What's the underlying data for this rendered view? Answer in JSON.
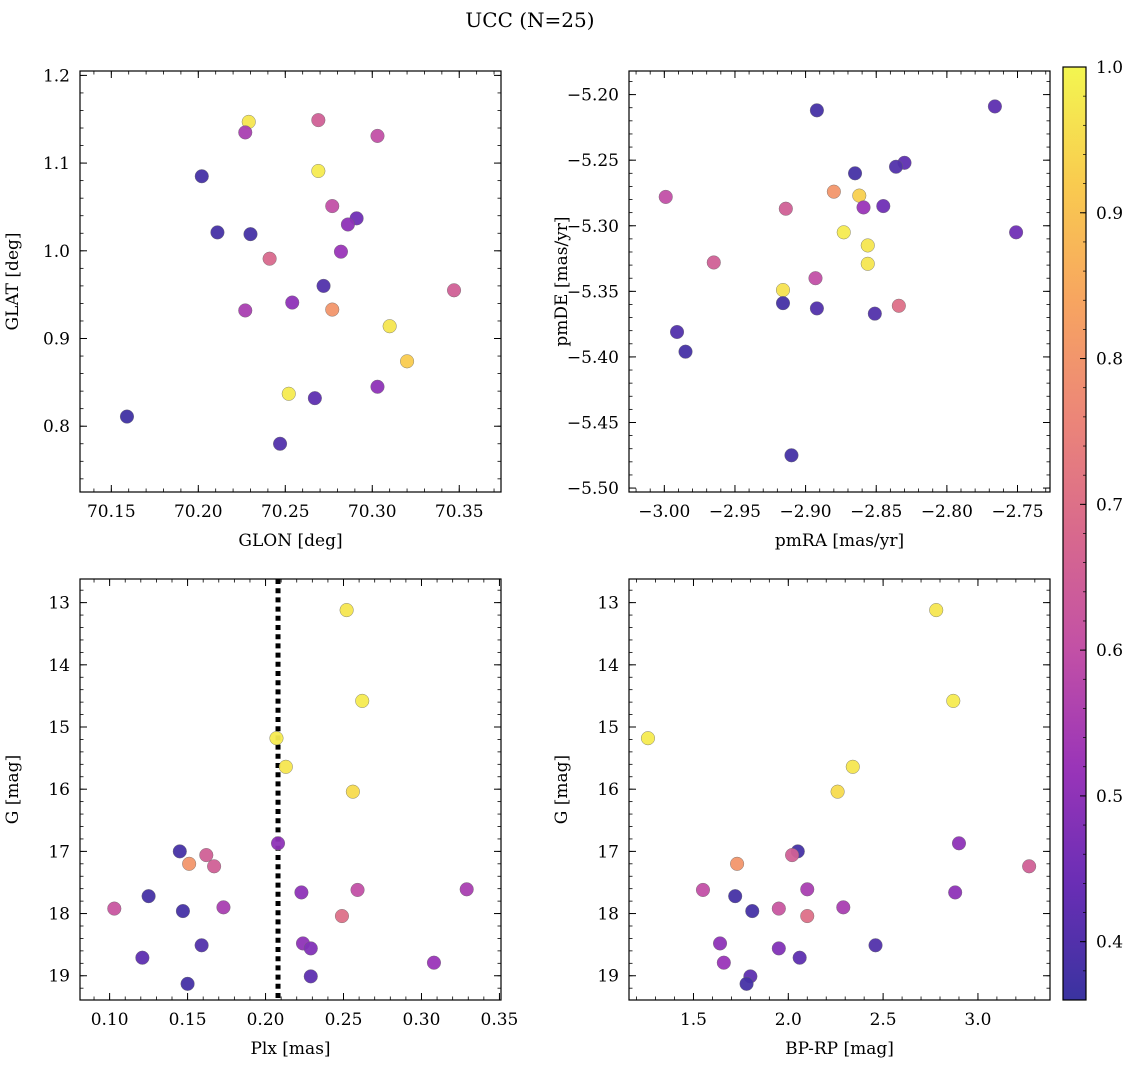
{
  "figure": {
    "suptitle": "UCC (N=25)"
  },
  "colorbar": {
    "range": [
      0.36,
      1.0
    ],
    "ticks": [
      0.4,
      0.5,
      0.6,
      0.7,
      0.8,
      0.9,
      1.0
    ],
    "colormap": "plasma",
    "stops": [
      "#3a33a0",
      "#6a2eb5",
      "#9a35b8",
      "#c250a6",
      "#d8698d",
      "#ec8678",
      "#f7a560",
      "#f9cb4f",
      "#f3f650"
    ]
  },
  "chart_data": [
    {
      "id": "glon_glat",
      "type": "scatter",
      "title": "",
      "xlabel": "GLON [deg]",
      "ylabel": "GLAT [deg]",
      "xlim": [
        70.132,
        70.374
      ],
      "ylim": [
        0.725,
        1.205
      ],
      "y_inverted": false,
      "xticks": [
        70.15,
        70.2,
        70.25,
        70.3,
        70.35
      ],
      "xtick_labels": [
        "70.15",
        "70.20",
        "70.25",
        "70.30",
        "70.35"
      ],
      "yticks": [
        0.8,
        0.9,
        1.0,
        1.1,
        1.2
      ],
      "ytick_labels": [
        "0.8",
        "0.9",
        "1.0",
        "1.1",
        "1.2"
      ],
      "vline": null,
      "points": [
        {
          "x": 70.229,
          "y": 1.147,
          "c": 0.97
        },
        {
          "x": 70.227,
          "y": 1.135,
          "c": 0.55
        },
        {
          "x": 70.269,
          "y": 1.149,
          "c": 0.65
        },
        {
          "x": 70.303,
          "y": 1.131,
          "c": 0.6
        },
        {
          "x": 70.269,
          "y": 1.091,
          "c": 0.98
        },
        {
          "x": 70.202,
          "y": 1.085,
          "c": 0.38
        },
        {
          "x": 70.277,
          "y": 1.051,
          "c": 0.6
        },
        {
          "x": 70.291,
          "y": 1.037,
          "c": 0.45
        },
        {
          "x": 70.286,
          "y": 1.03,
          "c": 0.5
        },
        {
          "x": 70.211,
          "y": 1.021,
          "c": 0.38
        },
        {
          "x": 70.23,
          "y": 1.019,
          "c": 0.38
        },
        {
          "x": 70.282,
          "y": 0.999,
          "c": 0.52
        },
        {
          "x": 70.241,
          "y": 0.991,
          "c": 0.68
        },
        {
          "x": 70.272,
          "y": 0.96,
          "c": 0.4
        },
        {
          "x": 70.347,
          "y": 0.955,
          "c": 0.65
        },
        {
          "x": 70.254,
          "y": 0.941,
          "c": 0.5
        },
        {
          "x": 70.227,
          "y": 0.932,
          "c": 0.55
        },
        {
          "x": 70.277,
          "y": 0.933,
          "c": 0.8
        },
        {
          "x": 70.31,
          "y": 0.914,
          "c": 0.97
        },
        {
          "x": 70.32,
          "y": 0.874,
          "c": 0.92
        },
        {
          "x": 70.303,
          "y": 0.845,
          "c": 0.5
        },
        {
          "x": 70.252,
          "y": 0.837,
          "c": 0.98
        },
        {
          "x": 70.267,
          "y": 0.832,
          "c": 0.42
        },
        {
          "x": 70.159,
          "y": 0.811,
          "c": 0.37
        },
        {
          "x": 70.247,
          "y": 0.78,
          "c": 0.4
        }
      ]
    },
    {
      "id": "pmra_pmde",
      "type": "scatter",
      "title": "",
      "xlabel": "pmRA [mas/yr]",
      "ylabel": "pmDE [mas/yr]",
      "xlim": [
        -3.025,
        -2.727
      ],
      "ylim": [
        -5.503,
        -5.182
      ],
      "y_inverted": false,
      "xticks": [
        -3.0,
        -2.95,
        -2.9,
        -2.85,
        -2.8,
        -2.75
      ],
      "xtick_labels": [
        "−3.00",
        "−2.95",
        "−2.90",
        "−2.85",
        "−2.80",
        "−2.75"
      ],
      "yticks": [
        -5.5,
        -5.45,
        -5.4,
        -5.35,
        -5.3,
        -5.25,
        -5.2
      ],
      "ytick_labels": [
        "−5.50",
        "−5.45",
        "−5.40",
        "−5.35",
        "−5.30",
        "−5.25",
        "−5.20"
      ],
      "vline": null,
      "points": [
        {
          "x": -2.766,
          "y": -5.209,
          "c": 0.42
        },
        {
          "x": -2.892,
          "y": -5.212,
          "c": 0.38
        },
        {
          "x": -2.83,
          "y": -5.252,
          "c": 0.42
        },
        {
          "x": -2.836,
          "y": -5.255,
          "c": 0.4
        },
        {
          "x": -2.865,
          "y": -5.26,
          "c": 0.38
        },
        {
          "x": -2.88,
          "y": -5.274,
          "c": 0.8
        },
        {
          "x": -2.862,
          "y": -5.277,
          "c": 0.93
        },
        {
          "x": -2.999,
          "y": -5.278,
          "c": 0.6
        },
        {
          "x": -2.845,
          "y": -5.285,
          "c": 0.45
        },
        {
          "x": -2.859,
          "y": -5.286,
          "c": 0.52
        },
        {
          "x": -2.914,
          "y": -5.287,
          "c": 0.65
        },
        {
          "x": -2.873,
          "y": -5.305,
          "c": 0.98
        },
        {
          "x": -2.751,
          "y": -5.305,
          "c": 0.45
        },
        {
          "x": -2.856,
          "y": -5.315,
          "c": 0.97
        },
        {
          "x": -2.965,
          "y": -5.328,
          "c": 0.65
        },
        {
          "x": -2.856,
          "y": -5.329,
          "c": 0.97
        },
        {
          "x": -2.893,
          "y": -5.34,
          "c": 0.6
        },
        {
          "x": -2.916,
          "y": -5.349,
          "c": 0.96
        },
        {
          "x": -2.916,
          "y": -5.359,
          "c": 0.38
        },
        {
          "x": -2.834,
          "y": -5.361,
          "c": 0.7
        },
        {
          "x": -2.892,
          "y": -5.363,
          "c": 0.4
        },
        {
          "x": -2.851,
          "y": -5.367,
          "c": 0.4
        },
        {
          "x": -2.991,
          "y": -5.381,
          "c": 0.4
        },
        {
          "x": -2.985,
          "y": -5.396,
          "c": 0.38
        },
        {
          "x": -2.91,
          "y": -5.475,
          "c": 0.38
        }
      ]
    },
    {
      "id": "plx_g",
      "type": "scatter",
      "title": "",
      "xlabel": "Plx [mas]",
      "ylabel": "G [mag]",
      "xlim": [
        0.081,
        0.351
      ],
      "ylim": [
        12.62,
        19.39
      ],
      "y_inverted": true,
      "xticks": [
        0.1,
        0.15,
        0.2,
        0.25,
        0.3,
        0.35
      ],
      "xtick_labels": [
        "0.10",
        "0.15",
        "0.20",
        "0.25",
        "0.30",
        "0.35"
      ],
      "yticks": [
        13,
        14,
        15,
        16,
        17,
        18,
        19
      ],
      "ytick_labels": [
        "13",
        "14",
        "15",
        "16",
        "17",
        "18",
        "19"
      ],
      "vline": 0.208,
      "points": [
        {
          "x": 0.252,
          "y": 13.12,
          "c": 0.97
        },
        {
          "x": 0.262,
          "y": 14.58,
          "c": 0.98
        },
        {
          "x": 0.207,
          "y": 15.18,
          "c": 0.98
        },
        {
          "x": 0.213,
          "y": 15.64,
          "c": 0.97
        },
        {
          "x": 0.256,
          "y": 16.04,
          "c": 0.95
        },
        {
          "x": 0.208,
          "y": 16.87,
          "c": 0.5
        },
        {
          "x": 0.145,
          "y": 17.0,
          "c": 0.38
        },
        {
          "x": 0.162,
          "y": 17.06,
          "c": 0.65
        },
        {
          "x": 0.151,
          "y": 17.2,
          "c": 0.8
        },
        {
          "x": 0.167,
          "y": 17.24,
          "c": 0.65
        },
        {
          "x": 0.329,
          "y": 17.61,
          "c": 0.55
        },
        {
          "x": 0.259,
          "y": 17.62,
          "c": 0.6
        },
        {
          "x": 0.223,
          "y": 17.66,
          "c": 0.5
        },
        {
          "x": 0.125,
          "y": 17.72,
          "c": 0.38
        },
        {
          "x": 0.173,
          "y": 17.9,
          "c": 0.55
        },
        {
          "x": 0.103,
          "y": 17.92,
          "c": 0.62
        },
        {
          "x": 0.147,
          "y": 17.96,
          "c": 0.38
        },
        {
          "x": 0.249,
          "y": 18.04,
          "c": 0.7
        },
        {
          "x": 0.224,
          "y": 18.48,
          "c": 0.5
        },
        {
          "x": 0.159,
          "y": 18.51,
          "c": 0.4
        },
        {
          "x": 0.229,
          "y": 18.56,
          "c": 0.48
        },
        {
          "x": 0.121,
          "y": 18.71,
          "c": 0.42
        },
        {
          "x": 0.308,
          "y": 18.79,
          "c": 0.52
        },
        {
          "x": 0.229,
          "y": 19.01,
          "c": 0.42
        },
        {
          "x": 0.15,
          "y": 19.13,
          "c": 0.38
        }
      ]
    },
    {
      "id": "bprp_g",
      "type": "scatter",
      "title": "",
      "xlabel": "BP-RP [mag]",
      "ylabel": "G [mag]",
      "xlim": [
        1.16,
        3.38
      ],
      "ylim": [
        12.62,
        19.39
      ],
      "y_inverted": true,
      "xticks": [
        1.5,
        2.0,
        2.5,
        3.0
      ],
      "xtick_labels": [
        "1.5",
        "2.0",
        "2.5",
        "3.0"
      ],
      "yticks": [
        13,
        14,
        15,
        16,
        17,
        18,
        19
      ],
      "ytick_labels": [
        "13",
        "14",
        "15",
        "16",
        "17",
        "18",
        "19"
      ],
      "vline": null,
      "points": [
        {
          "x": 2.78,
          "y": 13.12,
          "c": 0.97
        },
        {
          "x": 2.87,
          "y": 14.58,
          "c": 0.98
        },
        {
          "x": 1.26,
          "y": 15.18,
          "c": 0.98
        },
        {
          "x": 2.34,
          "y": 15.64,
          "c": 0.97
        },
        {
          "x": 2.26,
          "y": 16.04,
          "c": 0.95
        },
        {
          "x": 2.9,
          "y": 16.87,
          "c": 0.5
        },
        {
          "x": 2.05,
          "y": 17.0,
          "c": 0.38
        },
        {
          "x": 2.02,
          "y": 17.06,
          "c": 0.65
        },
        {
          "x": 1.73,
          "y": 17.2,
          "c": 0.8
        },
        {
          "x": 3.27,
          "y": 17.24,
          "c": 0.65
        },
        {
          "x": 2.1,
          "y": 17.61,
          "c": 0.55
        },
        {
          "x": 1.55,
          "y": 17.62,
          "c": 0.6
        },
        {
          "x": 2.88,
          "y": 17.66,
          "c": 0.5
        },
        {
          "x": 1.72,
          "y": 17.72,
          "c": 0.38
        },
        {
          "x": 2.29,
          "y": 17.9,
          "c": 0.55
        },
        {
          "x": 1.95,
          "y": 17.92,
          "c": 0.62
        },
        {
          "x": 1.81,
          "y": 17.96,
          "c": 0.38
        },
        {
          "x": 2.1,
          "y": 18.04,
          "c": 0.7
        },
        {
          "x": 1.64,
          "y": 18.48,
          "c": 0.5
        },
        {
          "x": 2.46,
          "y": 18.51,
          "c": 0.4
        },
        {
          "x": 1.95,
          "y": 18.56,
          "c": 0.48
        },
        {
          "x": 2.06,
          "y": 18.71,
          "c": 0.42
        },
        {
          "x": 1.66,
          "y": 18.79,
          "c": 0.52
        },
        {
          "x": 1.8,
          "y": 19.01,
          "c": 0.42
        },
        {
          "x": 1.78,
          "y": 19.13,
          "c": 0.38
        }
      ]
    }
  ]
}
